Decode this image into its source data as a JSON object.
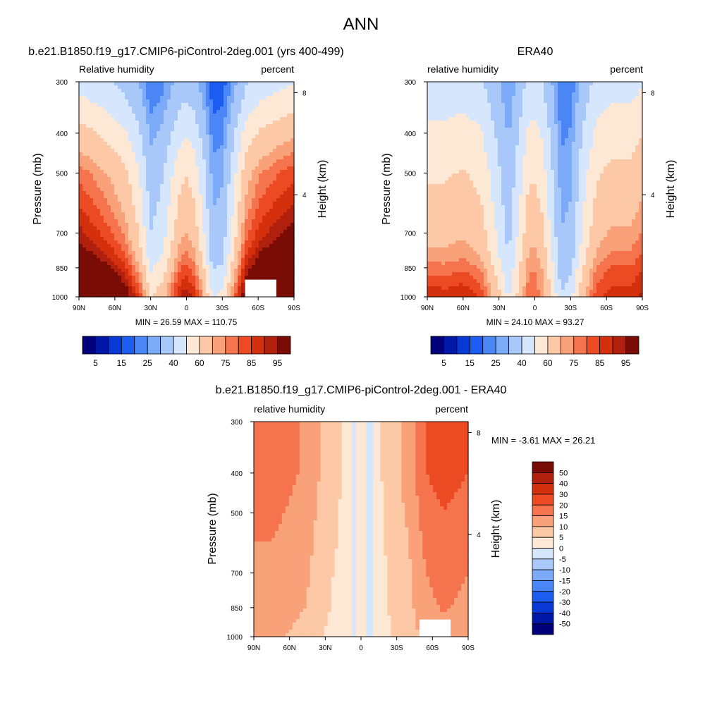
{
  "figure": {
    "title": "ANN"
  },
  "palettes": {
    "abs": [
      "#00007a",
      "#0018a8",
      "#0838d6",
      "#1c5cf0",
      "#4a86f6",
      "#7aaaf8",
      "#a9c8fa",
      "#d6e6fd",
      "#fde8d6",
      "#fcc8a6",
      "#f9a27a",
      "#f5744e",
      "#ec4a22",
      "#d4300e",
      "#b0200c",
      "#7a0c06"
    ],
    "diff": [
      "#00007a",
      "#0018a8",
      "#0838d6",
      "#1c5cf0",
      "#4a86f6",
      "#7aaaf8",
      "#a9c8fa",
      "#d6e6fd",
      "#fde8d6",
      "#fcc8a6",
      "#f9a27a",
      "#f5744e",
      "#ec4a22",
      "#d4300e",
      "#b0200c",
      "#7a0c06"
    ]
  },
  "chart_data": [
    {
      "type": "heatmap",
      "title": "b.e21.B1850.f19_g17.CMIP6-piControl-2deg.001 (yrs 400-499)",
      "left_string": "Relative humidity",
      "right_string": "percent",
      "ylabel": "Pressure (mb)",
      "y2label": "Height (km)",
      "xticks": [
        "90N",
        "60N",
        "30N",
        "0",
        "30S",
        "60S",
        "90S"
      ],
      "yticks": [
        "300",
        "400",
        "500",
        "700",
        "850",
        "1000"
      ],
      "y2ticks": [
        "8",
        "4"
      ],
      "min_max": "MIN =  26.59  MAX = 110.75",
      "min": 26.59,
      "max": 110.75,
      "xlim": [
        90,
        -90
      ],
      "ylim": [
        1000,
        300
      ],
      "levels": [
        5,
        10,
        15,
        20,
        25,
        30,
        40,
        50,
        60,
        70,
        75,
        80,
        85,
        90,
        95
      ],
      "colorbar_labels": [
        "5",
        "15",
        "25",
        "40",
        "60",
        "75",
        "85",
        "95"
      ],
      "palette": "abs",
      "mask": {
        "lat_min": 50,
        "lat_max": 74,
        "p_min": 900
      },
      "field": {
        "lat_profile": [
          [
            90,
            92
          ],
          [
            75,
            86
          ],
          [
            62,
            80
          ],
          [
            52,
            74
          ],
          [
            40,
            60
          ],
          [
            30,
            40
          ],
          [
            20,
            46
          ],
          [
            12,
            58
          ],
          [
            5,
            68
          ],
          [
            0,
            70
          ],
          [
            -6,
            66
          ],
          [
            -14,
            52
          ],
          [
            -22,
            32
          ],
          [
            -30,
            34
          ],
          [
            -40,
            56
          ],
          [
            -50,
            78
          ],
          [
            -62,
            88
          ],
          [
            -72,
            92
          ],
          [
            -80,
            95
          ],
          [
            -90,
            98
          ]
        ],
        "p_weight": [
          [
            300,
            0.5
          ],
          [
            400,
            0.7
          ],
          [
            500,
            0.85
          ],
          [
            700,
            1.0
          ],
          [
            850,
            1.15
          ],
          [
            1000,
            1.25
          ]
        ],
        "surface_boost": [
          [
            -90,
            6
          ],
          [
            -60,
            4
          ],
          [
            -30,
            10
          ],
          [
            0,
            6
          ],
          [
            30,
            10
          ],
          [
            60,
            10
          ],
          [
            90,
            16
          ]
        ]
      }
    },
    {
      "type": "heatmap",
      "title": "ERA40",
      "left_string": "relative humidity",
      "right_string": "percent",
      "ylabel": "Pressure (mb)",
      "y2label": "Height (km)",
      "xticks": [
        "90N",
        "60N",
        "30N",
        "0",
        "30S",
        "60S",
        "90S"
      ],
      "yticks": [
        "300",
        "400",
        "500",
        "700",
        "850",
        "1000"
      ],
      "y2ticks": [
        "8",
        "4"
      ],
      "min_max": "MIN =  24.10  MAX =  93.27",
      "min": 24.1,
      "max": 93.27,
      "xlim": [
        90,
        -90
      ],
      "ylim": [
        1000,
        300
      ],
      "levels": [
        5,
        10,
        15,
        20,
        25,
        30,
        40,
        50,
        60,
        70,
        75,
        80,
        85,
        90,
        95
      ],
      "colorbar_labels": [
        "5",
        "15",
        "25",
        "40",
        "60",
        "75",
        "85",
        "95"
      ],
      "palette": "abs",
      "field": {
        "lat_profile": [
          [
            90,
            62
          ],
          [
            75,
            62
          ],
          [
            60,
            64
          ],
          [
            45,
            60
          ],
          [
            32,
            46
          ],
          [
            22,
            34
          ],
          [
            12,
            50
          ],
          [
            5,
            62
          ],
          [
            0,
            62
          ],
          [
            -6,
            58
          ],
          [
            -14,
            44
          ],
          [
            -22,
            28
          ],
          [
            -30,
            30
          ],
          [
            -40,
            48
          ],
          [
            -52,
            62
          ],
          [
            -65,
            66
          ],
          [
            -80,
            66
          ],
          [
            -90,
            70
          ]
        ],
        "p_weight": [
          [
            300,
            0.7
          ],
          [
            400,
            0.85
          ],
          [
            500,
            0.95
          ],
          [
            700,
            1.08
          ],
          [
            850,
            1.2
          ],
          [
            1000,
            1.25
          ]
        ],
        "surface_boost": [
          [
            -90,
            4
          ],
          [
            -60,
            6
          ],
          [
            -30,
            8
          ],
          [
            0,
            0
          ],
          [
            30,
            8
          ],
          [
            60,
            10
          ],
          [
            90,
            12
          ]
        ]
      }
    },
    {
      "type": "heatmap",
      "title": "b.e21.B1850.f19_g17.CMIP6-piControl-2deg.001 - ERA40",
      "left_string": "relative humidity",
      "right_string": "percent",
      "ylabel": "Pressure (mb)",
      "y2label": "Height (km)",
      "xticks": [
        "90N",
        "60N",
        "30N",
        "0",
        "30S",
        "60S",
        "90S"
      ],
      "yticks": [
        "300",
        "400",
        "500",
        "700",
        "850",
        "1000"
      ],
      "y2ticks": [
        "8",
        "4"
      ],
      "min_max": "MIN =  -3.61  MAX =  26.21",
      "min": -3.61,
      "max": 26.21,
      "xlim": [
        90,
        -90
      ],
      "ylim": [
        1000,
        300
      ],
      "levels": [
        -50,
        -40,
        -30,
        -20,
        -15,
        -10,
        -5,
        0,
        5,
        10,
        15,
        20,
        30,
        40,
        50
      ],
      "colorbar_labels": [
        "50",
        "40",
        "30",
        "20",
        "15",
        "10",
        "5",
        "0",
        "-5",
        "-10",
        "-15",
        "-20",
        "-30",
        "-40",
        "-50"
      ],
      "palette": "diff",
      "mask": {
        "lat_min": 50,
        "lat_max": 74,
        "p_min": 900
      },
      "field": {
        "lat_profile": [
          [
            90,
            18
          ],
          [
            75,
            18
          ],
          [
            60,
            16
          ],
          [
            45,
            14
          ],
          [
            30,
            8
          ],
          [
            20,
            6
          ],
          [
            10,
            3
          ],
          [
            5,
            -1
          ],
          [
            0,
            2
          ],
          [
            -8,
            -1
          ],
          [
            -15,
            4
          ],
          [
            -25,
            8
          ],
          [
            -40,
            12
          ],
          [
            -55,
            20
          ],
          [
            -70,
            22
          ],
          [
            -90,
            20
          ]
        ],
        "p_weight": [
          [
            300,
            1.0
          ],
          [
            400,
            1.0
          ],
          [
            500,
            0.9
          ],
          [
            700,
            0.75
          ],
          [
            850,
            0.7
          ],
          [
            1000,
            0.6
          ]
        ],
        "surface_boost": [
          [
            -90,
            0
          ],
          [
            0,
            0
          ],
          [
            90,
            0
          ]
        ]
      }
    }
  ]
}
